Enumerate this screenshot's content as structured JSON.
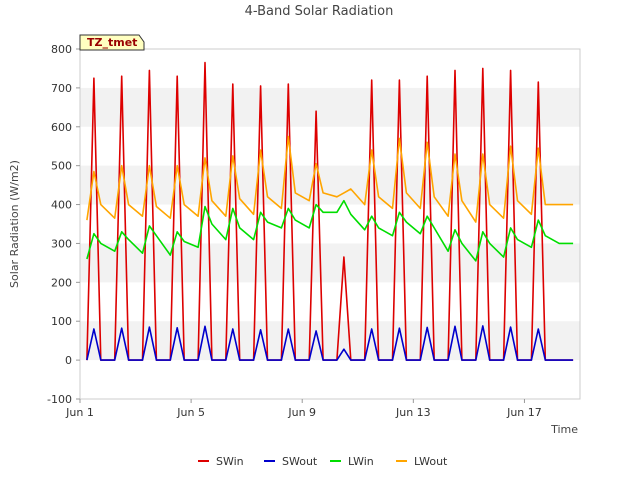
{
  "chart_data": {
    "type": "line",
    "title": "4-Band Solar Radiation",
    "xlabel": "Time",
    "ylabel": "Solar Radiation (W/m2)",
    "ylim": [
      -100,
      800
    ],
    "xlim": [
      0.0,
      18.0
    ],
    "y_ticks": [
      -100,
      0,
      100,
      200,
      300,
      400,
      500,
      600,
      700,
      800
    ],
    "x_ticks": [
      {
        "value": 0.0,
        "label": "Jun 1"
      },
      {
        "value": 4.0,
        "label": "Jun 5"
      },
      {
        "value": 8.0,
        "label": "Jun 9"
      },
      {
        "value": 12.0,
        "label": "Jun 13"
      },
      {
        "value": 16.0,
        "label": "Jun 17"
      }
    ],
    "grid": "horizontal bands",
    "legend_position": "bottom",
    "annotation": "TZ_tmet",
    "x_unit": "days since Jun 1 00:00",
    "series": [
      {
        "name": "SWin",
        "color": "#dd0000",
        "x": [
          0.25,
          0.5,
          0.75,
          1.25,
          1.5,
          1.75,
          2.25,
          2.5,
          2.75,
          3.25,
          3.5,
          3.75,
          4.25,
          4.5,
          4.75,
          5.25,
          5.5,
          5.75,
          6.25,
          6.5,
          6.75,
          7.25,
          7.5,
          7.75,
          8.25,
          8.5,
          8.75,
          9.25,
          9.5,
          9.75,
          10.25,
          10.5,
          10.75,
          11.25,
          11.5,
          11.75,
          12.25,
          12.5,
          12.75,
          13.25,
          13.5,
          13.75,
          14.25,
          14.5,
          14.75,
          15.25,
          15.5,
          15.75,
          16.25,
          16.5,
          16.75,
          17.25,
          17.5,
          17.75
        ],
        "y": [
          0,
          725,
          0,
          0,
          730,
          0,
          0,
          745,
          0,
          0,
          730,
          0,
          0,
          765,
          0,
          0,
          710,
          0,
          0,
          705,
          0,
          0,
          710,
          0,
          0,
          640,
          0,
          0,
          265,
          0,
          0,
          720,
          0,
          0,
          720,
          0,
          0,
          730,
          0,
          0,
          745,
          0,
          0,
          750,
          0,
          0,
          745,
          0,
          0,
          715,
          0,
          0,
          0,
          0
        ]
      },
      {
        "name": "SWout",
        "color": "#0000cc",
        "x": [
          0.25,
          0.5,
          0.75,
          1.25,
          1.5,
          1.75,
          2.25,
          2.5,
          2.75,
          3.25,
          3.5,
          3.75,
          4.25,
          4.5,
          4.75,
          5.25,
          5.5,
          5.75,
          6.25,
          6.5,
          6.75,
          7.25,
          7.5,
          7.75,
          8.25,
          8.5,
          8.75,
          9.25,
          9.5,
          9.75,
          10.25,
          10.5,
          10.75,
          11.25,
          11.5,
          11.75,
          12.25,
          12.5,
          12.75,
          13.25,
          13.5,
          13.75,
          14.25,
          14.5,
          14.75,
          15.25,
          15.5,
          15.75,
          16.25,
          16.5,
          16.75,
          17.25,
          17.5,
          17.75
        ],
        "y": [
          0,
          80,
          0,
          0,
          82,
          0,
          0,
          85,
          0,
          0,
          83,
          0,
          0,
          87,
          0,
          0,
          80,
          0,
          0,
          78,
          0,
          0,
          80,
          0,
          0,
          75,
          0,
          0,
          28,
          0,
          0,
          80,
          0,
          0,
          82,
          0,
          0,
          84,
          0,
          0,
          87,
          0,
          0,
          88,
          0,
          0,
          85,
          0,
          0,
          80,
          0,
          0,
          0,
          0
        ]
      },
      {
        "name": "LWin",
        "color": "#00dd00",
        "x": [
          0.25,
          0.5,
          0.75,
          1.25,
          1.5,
          1.75,
          2.25,
          2.5,
          2.75,
          3.25,
          3.5,
          3.75,
          4.25,
          4.5,
          4.75,
          5.25,
          5.5,
          5.75,
          6.25,
          6.5,
          6.75,
          7.25,
          7.5,
          7.75,
          8.25,
          8.5,
          8.75,
          9.25,
          9.5,
          9.75,
          10.25,
          10.5,
          10.75,
          11.25,
          11.5,
          11.75,
          12.25,
          12.5,
          12.75,
          13.25,
          13.5,
          13.75,
          14.25,
          14.5,
          14.75,
          15.25,
          15.5,
          15.75,
          16.25,
          16.5,
          16.75,
          17.25,
          17.5,
          17.75
        ],
        "y": [
          260,
          325,
          300,
          280,
          330,
          310,
          275,
          345,
          320,
          270,
          330,
          305,
          290,
          395,
          350,
          310,
          390,
          340,
          310,
          380,
          355,
          340,
          390,
          360,
          340,
          400,
          380,
          380,
          410,
          375,
          335,
          370,
          340,
          320,
          380,
          355,
          325,
          370,
          340,
          280,
          335,
          300,
          255,
          330,
          300,
          265,
          340,
          310,
          290,
          360,
          320,
          300,
          300,
          300
        ]
      },
      {
        "name": "LWout",
        "color": "#ffa500",
        "x": [
          0.25,
          0.5,
          0.75,
          1.25,
          1.5,
          1.75,
          2.25,
          2.5,
          2.75,
          3.25,
          3.5,
          3.75,
          4.25,
          4.5,
          4.75,
          5.25,
          5.5,
          5.75,
          6.25,
          6.5,
          6.75,
          7.25,
          7.5,
          7.75,
          8.25,
          8.5,
          8.75,
          9.25,
          9.5,
          9.75,
          10.25,
          10.5,
          10.75,
          11.25,
          11.5,
          11.75,
          12.25,
          12.5,
          12.75,
          13.25,
          13.5,
          13.75,
          14.25,
          14.5,
          14.75,
          15.25,
          15.5,
          15.75,
          16.25,
          16.5,
          16.75,
          17.25,
          17.5,
          17.75
        ],
        "y": [
          360,
          485,
          400,
          365,
          500,
          400,
          370,
          500,
          395,
          365,
          500,
          400,
          370,
          520,
          410,
          370,
          525,
          415,
          375,
          540,
          420,
          390,
          575,
          430,
          410,
          505,
          430,
          420,
          430,
          440,
          400,
          540,
          420,
          390,
          570,
          430,
          390,
          560,
          420,
          370,
          530,
          410,
          355,
          530,
          400,
          365,
          550,
          410,
          375,
          545,
          400,
          400,
          400,
          400
        ]
      }
    ]
  }
}
